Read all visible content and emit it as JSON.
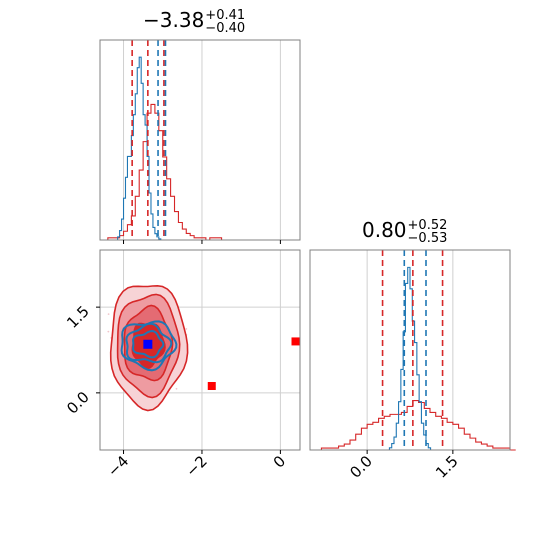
{
  "chart_data": {
    "type": "corner",
    "parameters": [
      {
        "summary": {
          "median": "−3.38",
          "plus": "+0.41",
          "minus": "−0.40"
        },
        "range": [
          -4.6,
          0.5
        ],
        "ticks": [
          -4,
          -2,
          0
        ],
        "tick_labels": [
          "−4",
          "−2",
          "0"
        ]
      },
      {
        "summary": {
          "median": "0.80",
          "plus": "+0.52",
          "minus": "−0.53"
        },
        "range": [
          -1.0,
          2.5
        ],
        "ticks": [
          0.0,
          1.5
        ],
        "tick_labels": [
          "0.0",
          "1.5"
        ]
      }
    ],
    "series": [
      {
        "color": "#d62728",
        "param1_hist": {
          "edges_start": -4.6,
          "bin_width": 0.1,
          "counts": [
            0,
            0,
            1,
            1,
            1,
            2,
            4,
            7,
            11,
            20,
            32,
            45,
            58,
            62,
            58,
            50,
            38,
            28,
            20,
            13,
            8,
            5,
            3,
            2,
            1,
            1,
            1,
            0,
            1,
            1,
            1,
            0,
            0,
            0,
            0,
            0,
            0,
            0,
            0,
            0,
            0,
            0,
            0,
            0,
            0,
            0,
            0,
            0,
            0,
            0,
            0
          ]
        },
        "param1_quantiles": [
          -3.78,
          -3.38,
          -2.97
        ],
        "param2_hist": {
          "edges_start": -1.0,
          "bin_width": 0.1,
          "counts": [
            0,
            0,
            1,
            1,
            1,
            2,
            3,
            5,
            8,
            11,
            13,
            14,
            16,
            17,
            18,
            18,
            19,
            22,
            25,
            24,
            21,
            19,
            17,
            16,
            14,
            13,
            11,
            8,
            6,
            4,
            3,
            2,
            1,
            1,
            1,
            0
          ]
        },
        "param2_quantiles": [
          0.27,
          0.8,
          1.32
        ],
        "joint_center": [
          -3.38,
          0.85
        ],
        "outliers": [
          [
            -1.75,
            0.12
          ],
          [
            0.5,
            0.9
          ]
        ]
      },
      {
        "color": "#1f77b4",
        "param1_hist": {
          "edges_start": -4.2,
          "bin_width": 0.05,
          "counts": [
            0,
            3,
            9,
            20,
            40,
            60,
            80,
            80,
            100,
            120,
            140,
            165,
            175,
            150,
            120,
            110,
            80,
            45,
            25,
            12,
            6,
            3,
            1,
            0
          ]
        },
        "param1_quantiles": [
          -3.12,
          -2.93
        ],
        "param2_hist": {
          "edges_start": 0.35,
          "bin_width": 0.04,
          "counts": [
            0,
            2,
            6,
            12,
            25,
            45,
            75,
            110,
            155,
            170,
            150,
            120,
            100,
            70,
            45,
            25,
            14,
            6,
            2,
            0
          ]
        },
        "param2_quantiles": [
          0.65,
          1.03
        ],
        "joint_center": [
          -3.38,
          0.85
        ]
      }
    ],
    "grid": true
  }
}
